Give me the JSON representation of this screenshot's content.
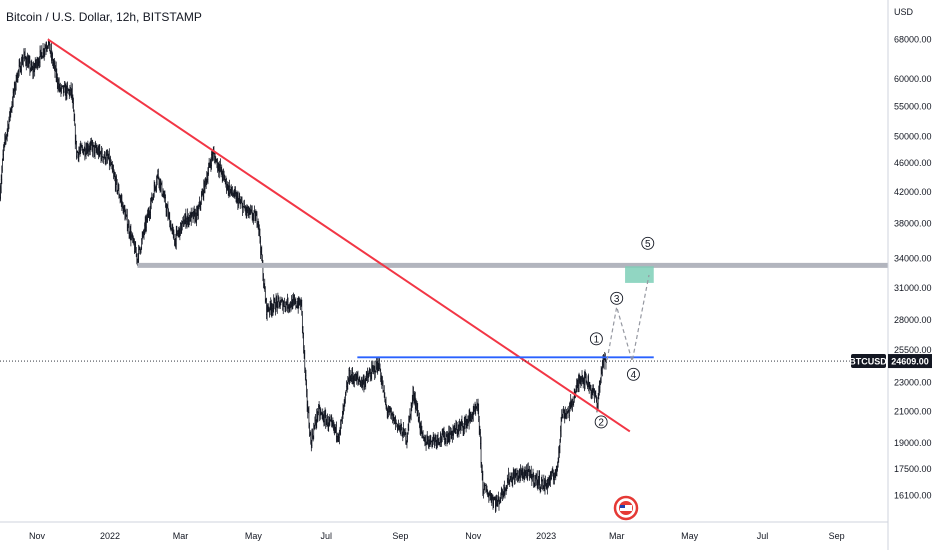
{
  "header": {
    "title": "Bitcoin / U.S. Dollar, 12h, BITSTAMP"
  },
  "chart_data": {
    "type": "candlestick",
    "symbol": "BTCUSD",
    "currency_label": "USD",
    "last_price": "24609.00",
    "y_scale": "log",
    "ylim": [
      14800,
      77000
    ],
    "y_ticks": [
      "68000.00",
      "60000.00",
      "55000.00",
      "50000.00",
      "46000.00",
      "42000.00",
      "38000.00",
      "34000.00",
      "31000.00",
      "28000.00",
      "25500.00",
      "23000.00",
      "21000.00",
      "19000.00",
      "17500.00",
      "16100.00"
    ],
    "x_ticks": [
      "Nov",
      "2022",
      "Mar",
      "May",
      "Jul",
      "Sep",
      "Nov",
      "2023",
      "Mar",
      "May",
      "Jul",
      "Sep"
    ],
    "price_path": [
      {
        "x": "2021-10-01",
        "y": 42000
      },
      {
        "x": "2021-10-04",
        "y": 48000
      },
      {
        "x": "2021-10-15",
        "y": 60500
      },
      {
        "x": "2021-10-21",
        "y": 64500
      },
      {
        "x": "2021-10-28",
        "y": 61500
      },
      {
        "x": "2021-11-10",
        "y": 67500
      },
      {
        "x": "2021-11-20",
        "y": 58000
      },
      {
        "x": "2021-11-30",
        "y": 57500
      },
      {
        "x": "2021-12-04",
        "y": 47500
      },
      {
        "x": "2021-12-15",
        "y": 48500
      },
      {
        "x": "2021-12-31",
        "y": 46500
      },
      {
        "x": "2022-01-10",
        "y": 41000
      },
      {
        "x": "2022-01-24",
        "y": 34000
      },
      {
        "x": "2022-02-05",
        "y": 41000
      },
      {
        "x": "2022-02-10",
        "y": 44500
      },
      {
        "x": "2022-02-24",
        "y": 36000
      },
      {
        "x": "2022-03-05",
        "y": 38500
      },
      {
        "x": "2022-03-15",
        "y": 39000
      },
      {
        "x": "2022-03-28",
        "y": 47500
      },
      {
        "x": "2022-04-10",
        "y": 42500
      },
      {
        "x": "2022-04-25",
        "y": 39500
      },
      {
        "x": "2022-05-05",
        "y": 38500
      },
      {
        "x": "2022-05-10",
        "y": 31000
      },
      {
        "x": "2022-05-12",
        "y": 29000
      },
      {
        "x": "2022-05-20",
        "y": 29500
      },
      {
        "x": "2022-06-10",
        "y": 29500
      },
      {
        "x": "2022-06-14",
        "y": 22500
      },
      {
        "x": "2022-06-18",
        "y": 19000
      },
      {
        "x": "2022-06-24",
        "y": 21000
      },
      {
        "x": "2022-07-12",
        "y": 19500
      },
      {
        "x": "2022-07-20",
        "y": 23500
      },
      {
        "x": "2022-08-01",
        "y": 23000
      },
      {
        "x": "2022-08-14",
        "y": 24400
      },
      {
        "x": "2022-08-20",
        "y": 21200
      },
      {
        "x": "2022-09-06",
        "y": 19300
      },
      {
        "x": "2022-09-12",
        "y": 22300
      },
      {
        "x": "2022-09-20",
        "y": 19100
      },
      {
        "x": "2022-10-10",
        "y": 19400
      },
      {
        "x": "2022-10-25",
        "y": 20200
      },
      {
        "x": "2022-11-05",
        "y": 21200
      },
      {
        "x": "2022-11-09",
        "y": 16500
      },
      {
        "x": "2022-11-21",
        "y": 15700
      },
      {
        "x": "2022-12-01",
        "y": 17000
      },
      {
        "x": "2022-12-15",
        "y": 17300
      },
      {
        "x": "2022-12-31",
        "y": 16600
      },
      {
        "x": "2023-01-10",
        "y": 17400
      },
      {
        "x": "2023-01-14",
        "y": 20800
      },
      {
        "x": "2023-01-20",
        "y": 21000
      },
      {
        "x": "2023-01-30",
        "y": 23500
      },
      {
        "x": "2023-02-05",
        "y": 23000
      },
      {
        "x": "2023-02-13",
        "y": 21600
      },
      {
        "x": "2023-02-17",
        "y": 24500
      },
      {
        "x": "2023-02-20",
        "y": 24609
      }
    ],
    "annotations": {
      "downtrend_line": {
        "from": {
          "x": "2021-11-10",
          "y": 68000
        },
        "to": {
          "x": "2023-03-12",
          "y": 19700
        },
        "color": "#f23645"
      },
      "resistance_zone": {
        "y": 33300,
        "x_from": "2022-01-24",
        "x_to": "2023-09-30",
        "color": "#b2b5be"
      },
      "breakout_level": {
        "y": 24900,
        "x_from": "2022-07-27",
        "x_to": "2023-04-01",
        "color": "#2962ff"
      },
      "target_box": {
        "x_from": "2023-03-08",
        "x_to": "2023-04-01",
        "y_from": 31500,
        "y_to": 33200,
        "color": "#7ecfb7"
      },
      "projection": [
        {
          "x": "2023-02-21",
          "y": 24700
        },
        {
          "x": "2023-03-01",
          "y": 29200
        },
        {
          "x": "2023-03-14",
          "y": 24600
        },
        {
          "x": "2023-03-28",
          "y": 32300
        }
      ],
      "wave_labels": [
        {
          "text": "1",
          "x": "2023-02-12",
          "y": 26400
        },
        {
          "text": "2",
          "x": "2023-02-16",
          "y": 20300
        },
        {
          "text": "3",
          "x": "2023-03-01",
          "y": 30000
        },
        {
          "text": "4",
          "x": "2023-03-15",
          "y": 23600
        },
        {
          "text": "5",
          "x": "2023-03-27",
          "y": 35700
        }
      ]
    },
    "colors": {
      "up": "#26a69a",
      "down": "#ef5350",
      "bars": "#131722",
      "badge": "#131722",
      "logo": "#e53935"
    }
  }
}
